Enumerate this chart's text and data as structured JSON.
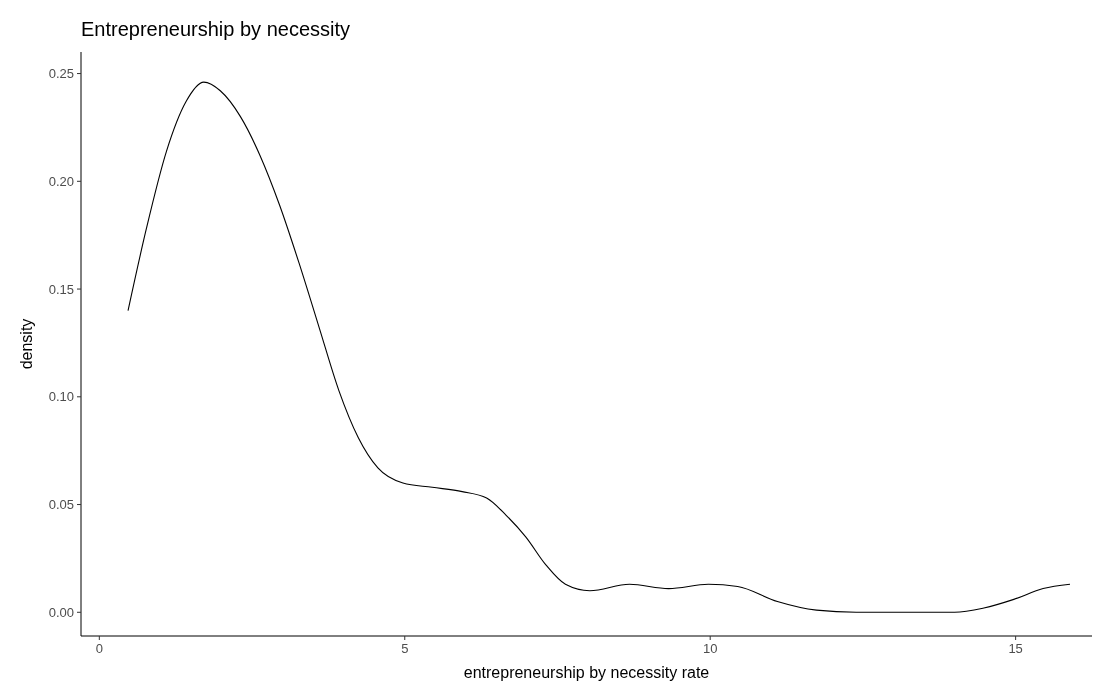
{
  "chart_data": {
    "type": "line",
    "title": "Entrepreneurship by necessity",
    "xlabel": "entrepreneurship by necessity rate",
    "ylabel": "density",
    "xlim": [
      -0.3,
      16.25
    ],
    "xticks": [
      0,
      5,
      10,
      15
    ],
    "ylim": [
      -0.011,
      0.26
    ],
    "yticks": [
      {
        "value": 0,
        "label": "0.00"
      },
      {
        "value": 0.05,
        "label": "0.05"
      },
      {
        "value": 0.1,
        "label": "0.10"
      },
      {
        "value": 0.15,
        "label": "0.15"
      },
      {
        "value": 0.2,
        "label": "0.20"
      },
      {
        "value": 0.25,
        "label": "0.25"
      }
    ],
    "line_style": "solid",
    "series": [
      {
        "color": "#000000",
        "x": [
          0.47,
          0.77,
          1.1,
          1.42,
          1.71,
          1.98,
          2.31,
          2.63,
          2.95,
          3.27,
          3.6,
          3.92,
          4.24,
          4.56,
          4.97,
          5.45,
          5.94,
          6.34,
          6.66,
          6.98,
          7.31,
          7.63,
          8.03,
          8.68,
          9.32,
          9.97,
          10.45,
          11.1,
          11.74,
          12.39,
          14.0,
          14.48,
          14.97,
          15.45,
          15.89
        ],
        "values": [
          0.14,
          0.178,
          0.214,
          0.237,
          0.246,
          0.242,
          0.23,
          0.212,
          0.189,
          0.162,
          0.132,
          0.103,
          0.081,
          0.067,
          0.06,
          0.058,
          0.056,
          0.053,
          0.045,
          0.035,
          0.022,
          0.013,
          0.01,
          0.013,
          0.011,
          0.013,
          0.012,
          0.005,
          0.001,
          0.0,
          0.0,
          0.002,
          0.006,
          0.011,
          0.013
        ]
      }
    ]
  }
}
